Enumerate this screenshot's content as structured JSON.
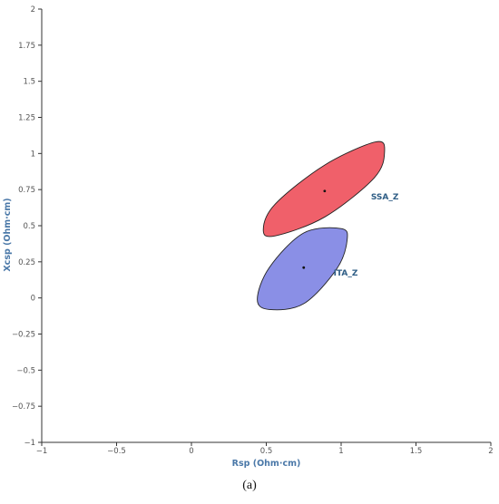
{
  "caption": "(a)",
  "chart_data": {
    "type": "scatter",
    "xlabel": "Rsp (Ohm·cm)",
    "ylabel": "Xcsp (Ohm·cm)",
    "xlim": [
      -1,
      2
    ],
    "ylim": [
      -1,
      2
    ],
    "x_ticks": [
      -1,
      -0.5,
      0,
      0.5,
      1,
      1.5,
      2
    ],
    "x_tick_labels": [
      "−1",
      "−0.5",
      "0",
      "0.5",
      "1",
      "1.5",
      "2"
    ],
    "y_ticks": [
      -1,
      -0.75,
      -0.5,
      -0.25,
      0,
      0.25,
      0.5,
      0.75,
      1,
      1.25,
      1.5,
      1.75,
      2
    ],
    "y_tick_labels": [
      "−1",
      "−0.75",
      "−0.5",
      "−0.25",
      "0",
      "0.25",
      "0.5",
      "0.75",
      "1",
      "1.25",
      "1.5",
      "1.75",
      "2"
    ],
    "grid": false,
    "series": [
      {
        "name": "SSA_Z",
        "center": [
          0.89,
          0.74
        ],
        "ellipse_outline": [
          [
            1.23,
            1.08
          ],
          [
            1.29,
            1.01
          ],
          [
            1.22,
            0.83
          ],
          [
            0.89,
            0.56
          ],
          [
            0.56,
            0.43
          ],
          [
            0.48,
            0.47
          ],
          [
            0.56,
            0.65
          ],
          [
            0.89,
            0.92
          ]
        ],
        "color": "#f0606a"
      },
      {
        "name": "ITA_Z",
        "center": [
          0.75,
          0.21
        ],
        "ellipse_outline": [
          [
            1.0,
            0.48
          ],
          [
            1.04,
            0.4
          ],
          [
            0.97,
            0.2
          ],
          [
            0.75,
            -0.04
          ],
          [
            0.52,
            -0.08
          ],
          [
            0.44,
            -0.01
          ],
          [
            0.52,
            0.21
          ],
          [
            0.75,
            0.45
          ]
        ],
        "color": "#8a8fe6"
      }
    ]
  }
}
